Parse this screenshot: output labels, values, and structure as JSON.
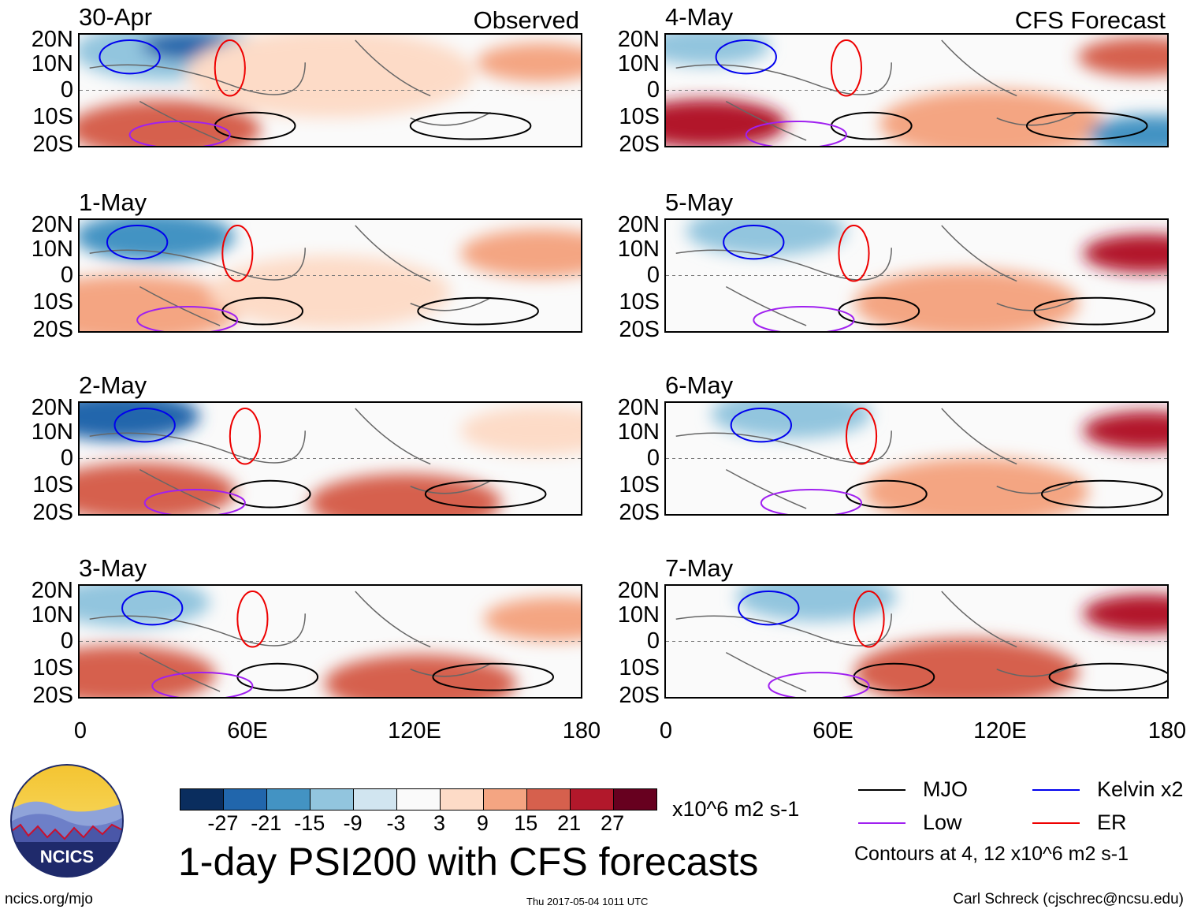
{
  "headings": {
    "left": "Observed",
    "right": "CFS Forecast"
  },
  "panels": [
    {
      "date": "30-Apr",
      "column": "left"
    },
    {
      "date": "1-May",
      "column": "left"
    },
    {
      "date": "2-May",
      "column": "left"
    },
    {
      "date": "3-May",
      "column": "left"
    },
    {
      "date": "4-May",
      "column": "right"
    },
    {
      "date": "5-May",
      "column": "right"
    },
    {
      "date": "6-May",
      "column": "right"
    },
    {
      "date": "7-May",
      "column": "right"
    }
  ],
  "lat_labels": [
    "20N",
    "10N",
    "0",
    "10S",
    "20S"
  ],
  "lon_labels": [
    "0",
    "60E",
    "120E",
    "180"
  ],
  "colorbar": {
    "ticks": [
      "-27",
      "-21",
      "-15",
      "-9",
      "-3",
      "3",
      "9",
      "15",
      "21",
      "27"
    ],
    "colors": [
      "#0a2d5e",
      "#2166ac",
      "#4393c3",
      "#92c5de",
      "#d1e5f0",
      "#fafafa",
      "#fddbc7",
      "#f4a582",
      "#d6604d",
      "#b2182b",
      "#67001f"
    ],
    "units": "x10^6 m2 s-1"
  },
  "title": "1-day PSI200 with CFS forecasts",
  "legend": {
    "items": [
      {
        "label": "MJO",
        "color": "#000000"
      },
      {
        "label": "Kelvin x2",
        "color": "#0000ee"
      },
      {
        "label": "Low",
        "color": "#a020f0"
      },
      {
        "label": "ER",
        "color": "#ee0000"
      }
    ],
    "note": "Contours at 4, 12 x10^6 m2 s-1"
  },
  "logo": {
    "text": "NCICS"
  },
  "footer": {
    "url": "ncics.org/mjo",
    "timestamp": "Thu 2017-05-04 1011 UTC",
    "author": "Carl Schreck (cjschrec@ncsu.edu)"
  }
}
